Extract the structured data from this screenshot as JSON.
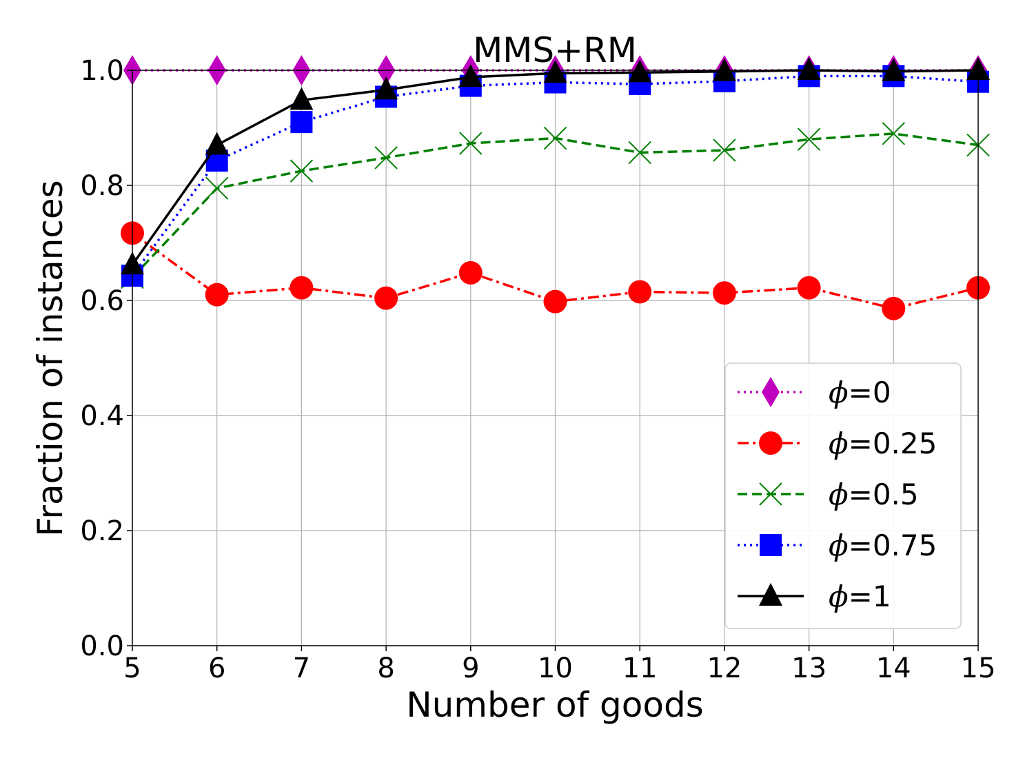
{
  "chart_data": {
    "type": "line",
    "title": "MMS+RM",
    "xlabel": "Number of goods",
    "ylabel": "Fraction of instances",
    "xlim": [
      5,
      15
    ],
    "ylim": [
      0.0,
      1.0
    ],
    "x": [
      5,
      6,
      7,
      8,
      9,
      10,
      11,
      12,
      13,
      14,
      15
    ],
    "x_ticks": [
      "5",
      "6",
      "7",
      "8",
      "9",
      "10",
      "11",
      "12",
      "13",
      "14",
      "15"
    ],
    "y_ticks": [
      {
        "value": 0.0,
        "label": "0.0"
      },
      {
        "value": 0.2,
        "label": "0.2"
      },
      {
        "value": 0.4,
        "label": "0.4"
      },
      {
        "value": 0.6,
        "label": "0.6"
      },
      {
        "value": 0.8,
        "label": "0.8"
      },
      {
        "value": 1.0,
        "label": "1.0"
      }
    ],
    "grid": true,
    "legend_position": "lower-right",
    "series": [
      {
        "name": "ϕ=0",
        "symbol": "ϕ",
        "value_label": "=0",
        "color": "#bf00bf",
        "dash": "dotted",
        "marker": "diamond",
        "values": [
          1.0,
          1.0,
          1.0,
          1.0,
          1.0,
          1.0,
          1.0,
          1.0,
          1.0,
          1.0,
          1.0
        ]
      },
      {
        "name": "ϕ=0.25",
        "symbol": "ϕ",
        "value_label": "=0.25",
        "color": "#ff0000",
        "dash": "dashdot",
        "marker": "circle",
        "values": [
          0.717,
          0.61,
          0.622,
          0.604,
          0.648,
          0.598,
          0.615,
          0.613,
          0.622,
          0.586,
          0.622
        ]
      },
      {
        "name": "ϕ=0.5",
        "symbol": "ϕ",
        "value_label": "=0.5",
        "color": "#008000",
        "dash": "dashed",
        "marker": "x",
        "values": [
          0.64,
          0.795,
          0.825,
          0.848,
          0.873,
          0.882,
          0.857,
          0.861,
          0.88,
          0.89,
          0.87
        ]
      },
      {
        "name": "ϕ=0.75",
        "symbol": "ϕ",
        "value_label": "=0.75",
        "color": "#0000ff",
        "dash": "dotted",
        "marker": "square",
        "values": [
          0.643,
          0.843,
          0.91,
          0.954,
          0.973,
          0.979,
          0.976,
          0.981,
          0.99,
          0.99,
          0.98
        ]
      },
      {
        "name": "ϕ=1",
        "symbol": "ϕ",
        "value_label": "=1",
        "color": "#000000",
        "dash": "solid",
        "marker": "triangle",
        "values": [
          0.662,
          0.87,
          0.948,
          0.966,
          0.988,
          0.995,
          0.996,
          0.998,
          1.0,
          0.998,
          1.0
        ]
      }
    ]
  }
}
